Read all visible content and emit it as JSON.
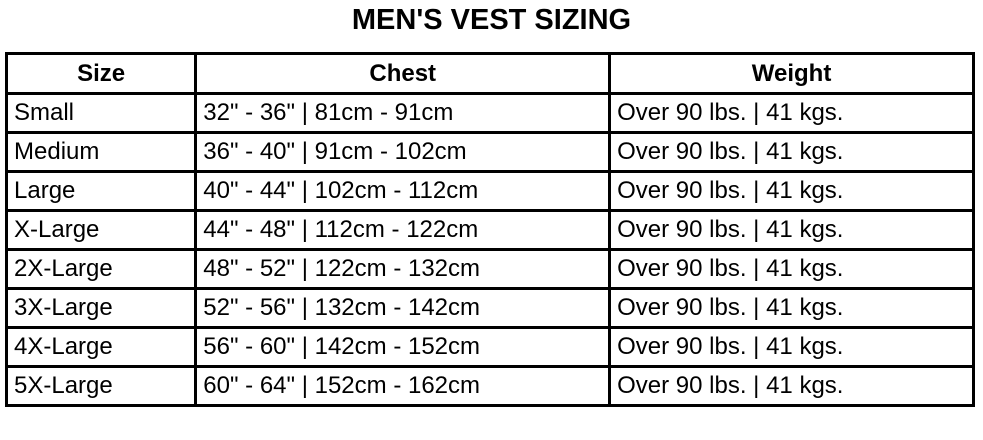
{
  "title": "MEN'S VEST SIZING",
  "headers": [
    "Size",
    "Chest",
    "Weight"
  ],
  "rows": [
    [
      "Small",
      "32\" - 36\" | 81cm - 91cm",
      "Over 90 lbs. | 41 kgs."
    ],
    [
      "Medium",
      "36\" - 40\" | 91cm - 102cm",
      "Over 90 lbs. | 41 kgs."
    ],
    [
      "Large",
      "40\" - 44\" | 102cm - 112cm",
      "Over 90 lbs. | 41 kgs."
    ],
    [
      "X-Large",
      "44\" - 48\" | 112cm - 122cm",
      "Over 90 lbs. | 41 kgs."
    ],
    [
      "2X-Large",
      "48\" - 52\" | 122cm - 132cm",
      "Over 90 lbs. | 41 kgs."
    ],
    [
      "3X-Large",
      "52\" - 56\" | 132cm - 142cm",
      "Over 90 lbs. | 41 kgs."
    ],
    [
      "4X-Large",
      "56\" - 60\" | 142cm - 152cm",
      "Over 90 lbs. | 41 kgs."
    ],
    [
      "5X-Large",
      "60\" - 64\" | 152cm - 162cm",
      "Over 90 lbs. | 41 kgs."
    ]
  ]
}
